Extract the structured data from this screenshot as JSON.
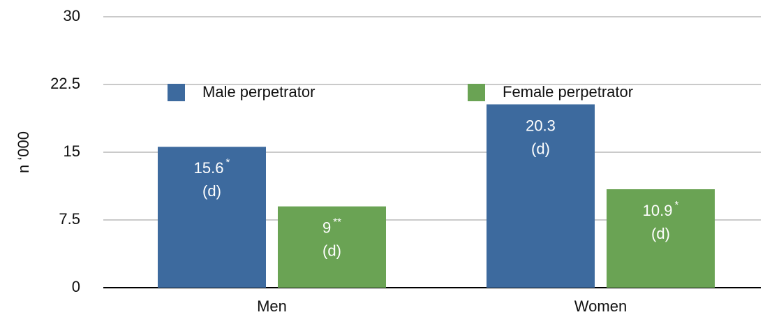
{
  "chart_data": {
    "type": "bar",
    "y_label": "n ‘000",
    "categories": [
      "Men",
      "Women"
    ],
    "series": [
      {
        "name": "Male perpetrator",
        "color": "#3d6a9e",
        "values": [
          15.6,
          20.3
        ],
        "markers": [
          "*",
          null
        ],
        "notes": [
          "(d)",
          "(d)"
        ]
      },
      {
        "name": "Female perpetrator",
        "color": "#6aa354",
        "values": [
          9,
          10.9
        ],
        "markers": [
          "**",
          "*"
        ],
        "notes": [
          "(d)",
          "(d)"
        ]
      }
    ],
    "ylim": [
      0,
      30
    ],
    "yticks": [
      0,
      7.5,
      15,
      22.5,
      30
    ],
    "grid": true
  }
}
